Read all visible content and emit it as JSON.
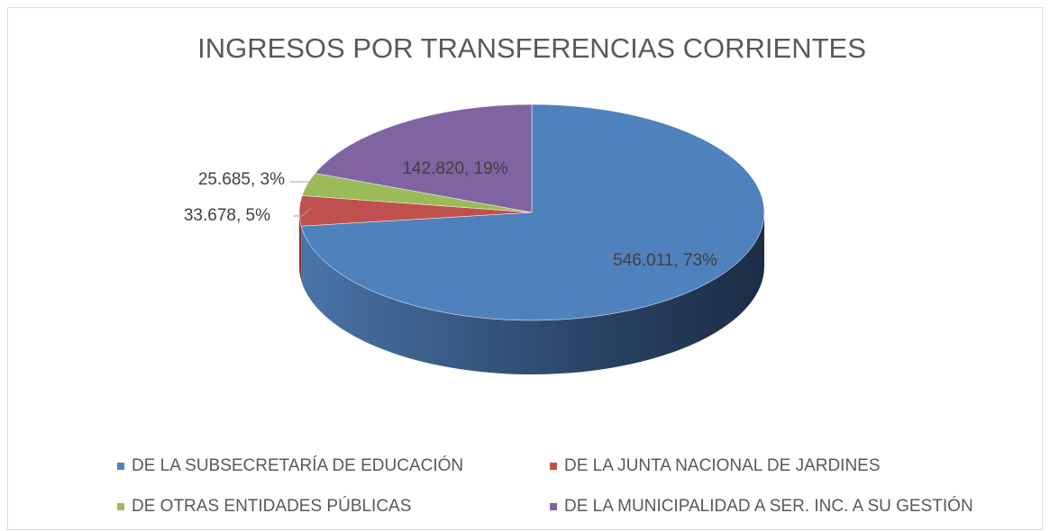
{
  "chart_data": {
    "type": "pie",
    "title": "INGRESOS POR TRANSFERENCIAS CORRIENTES",
    "categories": [
      "DE LA SUBSECRETARÍA DE EDUCACIÓN",
      "DE LA JUNTA NACIONAL DE JARDINES",
      "DE OTRAS ENTIDADES PÚBLICAS",
      "DE LA MUNICIPALIDAD A SER. INC. A SU GESTIÓN"
    ],
    "values": [
      546011,
      33678,
      25685,
      142820
    ],
    "value_labels": [
      "546.011, 73%",
      "33.678, 5%",
      "25.685, 3%",
      "142.820, 19%"
    ],
    "colors": [
      "#4f81bd",
      "#c0504d",
      "#9bbb59",
      "#8064a2"
    ],
    "legend": "bottom"
  }
}
